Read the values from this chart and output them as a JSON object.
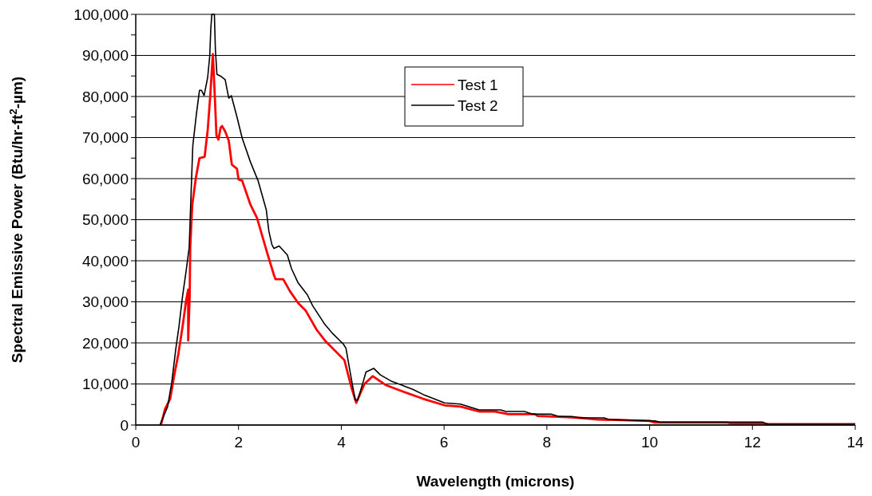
{
  "chart_data": {
    "type": "line",
    "xlabel": "Wavelength (microns)",
    "ylabel": "Spectral Emissive Power (Btu/hr-ft$^{2}$-µm)",
    "xlim": [
      0,
      14
    ],
    "xticks": [
      0,
      2,
      4,
      6,
      8,
      10,
      12,
      14
    ],
    "ylim": [
      0,
      100000
    ],
    "yticks": [
      {
        "value": 0,
        "label": "0"
      },
      {
        "value": 5000,
        "label": null
      },
      {
        "value": 10000,
        "label": "10,000"
      },
      {
        "value": 15000,
        "label": null
      },
      {
        "value": 20000,
        "label": "20,000"
      },
      {
        "value": 25000,
        "label": null
      },
      {
        "value": 30000,
        "label": "30,000"
      },
      {
        "value": 35000,
        "label": null
      },
      {
        "value": 40000,
        "label": "40,000"
      },
      {
        "value": 45000,
        "label": null
      },
      {
        "value": 50000,
        "label": "50,000"
      },
      {
        "value": 55000,
        "label": null
      },
      {
        "value": 60000,
        "label": "60,000"
      },
      {
        "value": 65000,
        "label": null
      },
      {
        "value": 70000,
        "label": "70,000"
      },
      {
        "value": 75000,
        "label": null
      },
      {
        "value": 80000,
        "label": "80,000"
      },
      {
        "value": 85000,
        "label": null
      },
      {
        "value": 90000,
        "label": "90,000"
      },
      {
        "value": 95000,
        "label": null
      },
      {
        "value": 100000,
        "label": "100,000"
      }
    ],
    "grid": "y",
    "legend": "top",
    "marker": "none",
    "line_style": "solid",
    "series": [
      {
        "name": "Test 1",
        "color": "#ff0000",
        "x": [
          0.49,
          0.57,
          0.67,
          0.75,
          0.83,
          0.91,
          0.98,
          1.02,
          1.02,
          1.05,
          1.06,
          1.1,
          1.17,
          1.24,
          1.34,
          1.4,
          1.45,
          1.5,
          1.54,
          1.57,
          1.61,
          1.65,
          1.68,
          1.74,
          1.81,
          1.87,
          1.97,
          2.0,
          2.07,
          2.23,
          2.36,
          2.57,
          2.69,
          2.72,
          2.87,
          3.0,
          3.16,
          3.31,
          3.52,
          3.68,
          4.06,
          4.2,
          4.29,
          4.45,
          4.61,
          4.87,
          5.23,
          5.59,
          6.01,
          6.32,
          6.68,
          6.99,
          7.25,
          7.77,
          7.82,
          8.39,
          8.64,
          8.99,
          10.0,
          10.1,
          11.5,
          11.6,
          12.2,
          12.3,
          14.0
        ],
        "values": [
          0,
          3900,
          6400,
          12200,
          17400,
          23900,
          30300,
          33000,
          20600,
          31700,
          43300,
          53700,
          60200,
          65000,
          65300,
          71800,
          80200,
          90300,
          79600,
          70500,
          69500,
          72400,
          72800,
          71500,
          69200,
          63400,
          62400,
          59800,
          59500,
          53700,
          50400,
          41400,
          36500,
          35500,
          35500,
          32600,
          29700,
          27800,
          23200,
          20600,
          15800,
          9000,
          5400,
          10000,
          11900,
          9700,
          8000,
          6400,
          4800,
          4500,
          3300,
          3300,
          2650,
          2650,
          2200,
          1900,
          1750,
          1350,
          1000,
          600,
          600,
          400,
          400,
          200,
          200
        ]
      },
      {
        "name": "Test 2",
        "color": "#000000",
        "x": [
          0.47,
          0.62,
          0.7,
          0.78,
          0.84,
          0.91,
          0.98,
          1.04,
          1.06,
          1.11,
          1.18,
          1.24,
          1.28,
          1.33,
          1.4,
          1.44,
          1.46,
          1.48,
          1.53,
          1.55,
          1.58,
          1.66,
          1.74,
          1.81,
          1.86,
          1.97,
          2.07,
          2.23,
          2.38,
          2.54,
          2.59,
          2.65,
          2.69,
          2.79,
          2.95,
          3.03,
          3.16,
          3.34,
          3.44,
          3.68,
          3.83,
          4.04,
          4.09,
          4.2,
          4.27,
          4.32,
          4.43,
          4.48,
          4.63,
          4.76,
          4.97,
          5.18,
          5.39,
          5.6,
          6.01,
          6.32,
          6.68,
          7.1,
          7.2,
          7.56,
          7.72,
          8.08,
          8.23,
          8.49,
          8.64,
          9.11,
          9.21,
          10.1,
          10.2,
          12.2,
          12.3,
          14.0
        ],
        "values": [
          0,
          4500,
          10300,
          18600,
          23900,
          31300,
          37500,
          43300,
          50500,
          68000,
          75700,
          81500,
          81500,
          80200,
          84700,
          89900,
          96400,
          100000,
          100000,
          91300,
          85400,
          84900,
          84100,
          79600,
          80200,
          75000,
          69900,
          64100,
          59500,
          52400,
          47200,
          43900,
          43000,
          43600,
          41400,
          38100,
          34600,
          31700,
          29100,
          24500,
          22300,
          19700,
          18700,
          10900,
          6100,
          6100,
          10700,
          12900,
          13800,
          12200,
          10700,
          9700,
          8700,
          7400,
          5400,
          5100,
          3700,
          3700,
          3300,
          3300,
          2650,
          2650,
          2100,
          2100,
          1750,
          1750,
          1350,
          1000,
          700,
          700,
          200,
          200
        ]
      }
    ]
  }
}
